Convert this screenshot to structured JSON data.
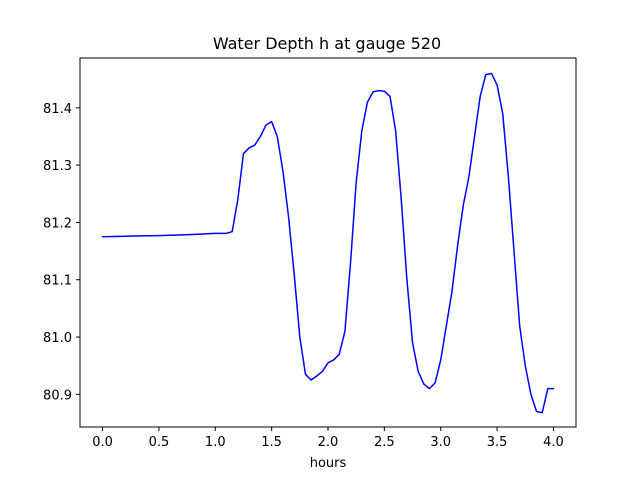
{
  "chart_data": {
    "type": "line",
    "title": "Water Depth h at gauge 520",
    "xlabel": "hours",
    "ylabel": "",
    "xlim": [
      -0.2,
      4.2
    ],
    "ylim": [
      80.843,
      81.487
    ],
    "grid": false,
    "xticks": [
      0.0,
      0.5,
      1.0,
      1.5,
      2.0,
      2.5,
      3.0,
      3.5,
      4.0
    ],
    "xtick_labels": [
      "0.0",
      "0.5",
      "1.0",
      "1.5",
      "2.0",
      "2.5",
      "3.0",
      "3.5",
      "4.0"
    ],
    "yticks": [
      80.9,
      81.0,
      81.1,
      81.2,
      81.3,
      81.4
    ],
    "ytick_labels": [
      "80.9",
      "81.0",
      "81.1",
      "81.2",
      "81.3",
      "81.4"
    ],
    "series": [
      {
        "color": "#0000ff",
        "x": [
          0.0,
          0.2,
          0.5,
          0.8,
          1.0,
          1.1,
          1.15,
          1.2,
          1.25,
          1.3,
          1.35,
          1.4,
          1.45,
          1.5,
          1.55,
          1.6,
          1.65,
          1.7,
          1.75,
          1.8,
          1.85,
          1.9,
          1.95,
          2.0,
          2.05,
          2.1,
          2.15,
          2.2,
          2.25,
          2.3,
          2.35,
          2.4,
          2.45,
          2.5,
          2.55,
          2.6,
          2.65,
          2.7,
          2.75,
          2.8,
          2.85,
          2.9,
          2.95,
          3.0,
          3.05,
          3.1,
          3.15,
          3.2,
          3.25,
          3.3,
          3.35,
          3.4,
          3.45,
          3.5,
          3.55,
          3.6,
          3.65,
          3.7,
          3.75,
          3.8,
          3.85,
          3.9,
          3.95,
          4.0
        ],
        "y": [
          81.175,
          81.176,
          81.177,
          81.179,
          81.181,
          81.181,
          81.184,
          81.24,
          81.32,
          81.33,
          81.335,
          81.35,
          81.37,
          81.376,
          81.35,
          81.29,
          81.21,
          81.11,
          81.0,
          80.935,
          80.925,
          80.932,
          80.94,
          80.955,
          80.96,
          80.97,
          81.01,
          81.13,
          81.27,
          81.36,
          81.41,
          81.428,
          81.43,
          81.429,
          81.42,
          81.36,
          81.24,
          81.1,
          80.99,
          80.94,
          80.918,
          80.91,
          80.92,
          80.96,
          81.02,
          81.08,
          81.16,
          81.23,
          81.28,
          81.35,
          81.42,
          81.458,
          81.46,
          81.44,
          81.39,
          81.28,
          81.15,
          81.02,
          80.95,
          80.9,
          80.87,
          80.868,
          80.91,
          80.91
        ]
      }
    ]
  }
}
